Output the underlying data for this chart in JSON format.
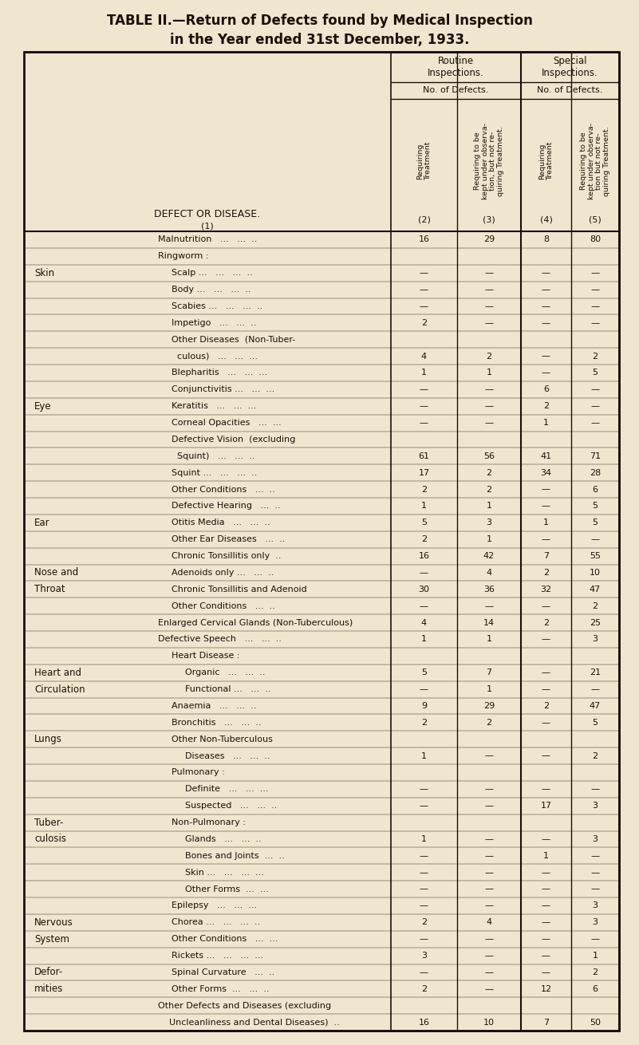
{
  "title_line1": "TABLE II.—Return of Defects found by Medical Inspection",
  "title_line2": "in the Year ended 31st December, 1933.",
  "bg_color": "#f0e6d0",
  "text_color": "#1a1008",
  "rows": [
    {
      "cat": "",
      "sub": "Malnutrition   ...   ...  ..",
      "ind": 0,
      "c2": "16",
      "c3": "29",
      "c4": "8",
      "c5": "80"
    },
    {
      "cat": "",
      "sub": "Ringworm :",
      "ind": 0,
      "c2": "",
      "c3": "",
      "c4": "",
      "c5": ""
    },
    {
      "cat": "Skin",
      "sub": "  Scalp ...   ...   ...  ..",
      "ind": 1,
      "c2": "—",
      "c3": "—",
      "c4": "—",
      "c5": "—"
    },
    {
      "cat": "",
      "sub": "  Body ...   ...   ...  ..",
      "ind": 1,
      "c2": "—",
      "c3": "—",
      "c4": "—",
      "c5": "—"
    },
    {
      "cat": "",
      "sub": "  Scabies ...   ...   ...  ..",
      "ind": 1,
      "c2": "—",
      "c3": "—",
      "c4": "—",
      "c5": "—"
    },
    {
      "cat": "",
      "sub": "  Impetigo   ...   ...  ..",
      "ind": 1,
      "c2": "2",
      "c3": "—",
      "c4": "—",
      "c5": "—"
    },
    {
      "cat": "",
      "sub": "  Other Diseases  (Non-Tuber-",
      "ind": 1,
      "c2": "",
      "c3": "",
      "c4": "",
      "c5": ""
    },
    {
      "cat": "",
      "sub": "    culous)   ...   ...  ...",
      "ind": 1,
      "c2": "4",
      "c3": "2",
      "c4": "—",
      "c5": "2"
    },
    {
      "cat": "",
      "sub": "  Blepharitis   ...   ...  ...",
      "ind": 1,
      "c2": "1",
      "c3": "1",
      "c4": "—",
      "c5": "5"
    },
    {
      "cat": "",
      "sub": "  Conjunctivitis ...   ...  ...",
      "ind": 1,
      "c2": "—",
      "c3": "—",
      "c4": "6",
      "c5": "—"
    },
    {
      "cat": "Eye",
      "sub": "  Keratitis   ...   ...  ...",
      "ind": 1,
      "c2": "—",
      "c3": "—",
      "c4": "2",
      "c5": "—"
    },
    {
      "cat": "",
      "sub": "  Corneal Opacities   ...  ...",
      "ind": 1,
      "c2": "—",
      "c3": "—",
      "c4": "1",
      "c5": "—"
    },
    {
      "cat": "",
      "sub": "  Defective Vision  (excluding",
      "ind": 1,
      "c2": "",
      "c3": "",
      "c4": "",
      "c5": ""
    },
    {
      "cat": "",
      "sub": "    Squint)   ...   ...  ..",
      "ind": 1,
      "c2": "61",
      "c3": "56",
      "c4": "41",
      "c5": "71"
    },
    {
      "cat": "",
      "sub": "  Squint ...   ...   ...  ..",
      "ind": 1,
      "c2": "17",
      "c3": "2",
      "c4": "34",
      "c5": "28"
    },
    {
      "cat": "",
      "sub": "  Other Conditions   ...  ..",
      "ind": 1,
      "c2": "2",
      "c3": "2",
      "c4": "—",
      "c5": "6"
    },
    {
      "cat": "",
      "sub": "  Defective Hearing   ...  ..",
      "ind": 1,
      "c2": "1",
      "c3": "1",
      "c4": "—",
      "c5": "5"
    },
    {
      "cat": "Ear",
      "sub": "  Otitis Media   ...   ...  ..",
      "ind": 1,
      "c2": "5",
      "c3": "3",
      "c4": "1",
      "c5": "5"
    },
    {
      "cat": "",
      "sub": "  Other Ear Diseases   ...  ..",
      "ind": 1,
      "c2": "2",
      "c3": "1",
      "c4": "—",
      "c5": "—"
    },
    {
      "cat": "",
      "sub": "  Chronic Tonsillitis only  ..",
      "ind": 1,
      "c2": "16",
      "c3": "42",
      "c4": "7",
      "c5": "55"
    },
    {
      "cat": "Nose and",
      "sub": "  Adenoids only ...   ...  ..",
      "ind": 1,
      "c2": "—",
      "c3": "4",
      "c4": "2",
      "c5": "10"
    },
    {
      "cat": "  Throat",
      "sub": "  Chronic Tonsillitis and Adenoid",
      "ind": 1,
      "c2": "30",
      "c3": "36",
      "c4": "32",
      "c5": "47"
    },
    {
      "cat": "",
      "sub": "  Other Conditions   ...  ..",
      "ind": 1,
      "c2": "—",
      "c3": "—",
      "c4": "—",
      "c5": "2"
    },
    {
      "cat": "",
      "sub": "Enlarged Cervical Glands (Non-Tuberculous)",
      "ind": 0,
      "c2": "4",
      "c3": "14",
      "c4": "2",
      "c5": "25"
    },
    {
      "cat": "",
      "sub": "Defective Speech   ...   ...  ..",
      "ind": 0,
      "c2": "1",
      "c3": "1",
      "c4": "—",
      "c5": "3"
    },
    {
      "cat": "",
      "sub": "  Heart Disease :",
      "ind": 1,
      "c2": "",
      "c3": "",
      "c4": "",
      "c5": ""
    },
    {
      "cat": "Heart and",
      "sub": "    Organic   ...   ...  ..",
      "ind": 2,
      "c2": "5",
      "c3": "7",
      "c4": "—",
      "c5": "21"
    },
    {
      "cat": "Circulation",
      "sub": "    Functional ...   ...  ..",
      "ind": 2,
      "c2": "—",
      "c3": "1",
      "c4": "—",
      "c5": "—"
    },
    {
      "cat": "",
      "sub": "  Anaemia   ...   ...  ..",
      "ind": 1,
      "c2": "9",
      "c3": "29",
      "c4": "2",
      "c5": "47"
    },
    {
      "cat": "",
      "sub": "  Bronchitis   ...   ...  ..",
      "ind": 1,
      "c2": "2",
      "c3": "2",
      "c4": "—",
      "c5": "5"
    },
    {
      "cat": "Lungs",
      "sub": "  Other Non-Tuberculous",
      "ind": 1,
      "c2": "",
      "c3": "",
      "c4": "",
      "c5": ""
    },
    {
      "cat": "",
      "sub": "    Diseases   ...   ...  ..",
      "ind": 2,
      "c2": "1",
      "c3": "—",
      "c4": "—",
      "c5": "2"
    },
    {
      "cat": "",
      "sub": "  Pulmonary :",
      "ind": 1,
      "c2": "",
      "c3": "",
      "c4": "",
      "c5": ""
    },
    {
      "cat": "",
      "sub": "    Definite   ...   ...  ...",
      "ind": 2,
      "c2": "—",
      "c3": "—",
      "c4": "—",
      "c5": "—"
    },
    {
      "cat": "",
      "sub": "    Suspected   ...   ...  ..",
      "ind": 2,
      "c2": "—",
      "c3": "—",
      "c4": "17",
      "c5": "3"
    },
    {
      "cat": "Tuber-",
      "sub": "  Non-Pulmonary :",
      "ind": 1,
      "c2": "",
      "c3": "",
      "c4": "",
      "c5": ""
    },
    {
      "cat": "culosis",
      "sub": "    Glands   ...   ...  ..",
      "ind": 2,
      "c2": "1",
      "c3": "—",
      "c4": "—",
      "c5": "3"
    },
    {
      "cat": "",
      "sub": "    Bones and Joints  ...  ..",
      "ind": 2,
      "c2": "—",
      "c3": "—",
      "c4": "1",
      "c5": "—"
    },
    {
      "cat": "",
      "sub": "    Skin ...   ...   ...  ...",
      "ind": 2,
      "c2": "—",
      "c3": "—",
      "c4": "—",
      "c5": "—"
    },
    {
      "cat": "",
      "sub": "    Other Forms  ...  ...",
      "ind": 2,
      "c2": "—",
      "c3": "—",
      "c4": "—",
      "c5": "—"
    },
    {
      "cat": "",
      "sub": "  Epilepsy   ...   ...  ...",
      "ind": 1,
      "c2": "—",
      "c3": "—",
      "c4": "—",
      "c5": "3"
    },
    {
      "cat": "Nervous",
      "sub": "  Chorea ...   ...   ...  ..",
      "ind": 1,
      "c2": "2",
      "c3": "4",
      "c4": "—",
      "c5": "3"
    },
    {
      "cat": "System",
      "sub": "  Other Conditions   ...  ...",
      "ind": 1,
      "c2": "—",
      "c3": "—",
      "c4": "—",
      "c5": "—"
    },
    {
      "cat": "",
      "sub": "  Rickets ...   ...   ...  ...",
      "ind": 1,
      "c2": "3",
      "c3": "—",
      "c4": "—",
      "c5": "1"
    },
    {
      "cat": "Defor-",
      "sub": "  Spinal Curvature   ...  ..",
      "ind": 1,
      "c2": "—",
      "c3": "—",
      "c4": "—",
      "c5": "2"
    },
    {
      "cat": "mities",
      "sub": "  Other Forms  ...   ...  ..",
      "ind": 1,
      "c2": "2",
      "c3": "—",
      "c4": "12",
      "c5": "6"
    },
    {
      "cat": "",
      "sub": "Other Defects and Diseases (excluding",
      "ind": 0,
      "c2": "",
      "c3": "",
      "c4": "",
      "c5": ""
    },
    {
      "cat": "",
      "sub": "    Uncleanliness and Dental Diseases)  ..",
      "ind": 0,
      "c2": "16",
      "c3": "10",
      "c4": "7",
      "c5": "50"
    }
  ]
}
